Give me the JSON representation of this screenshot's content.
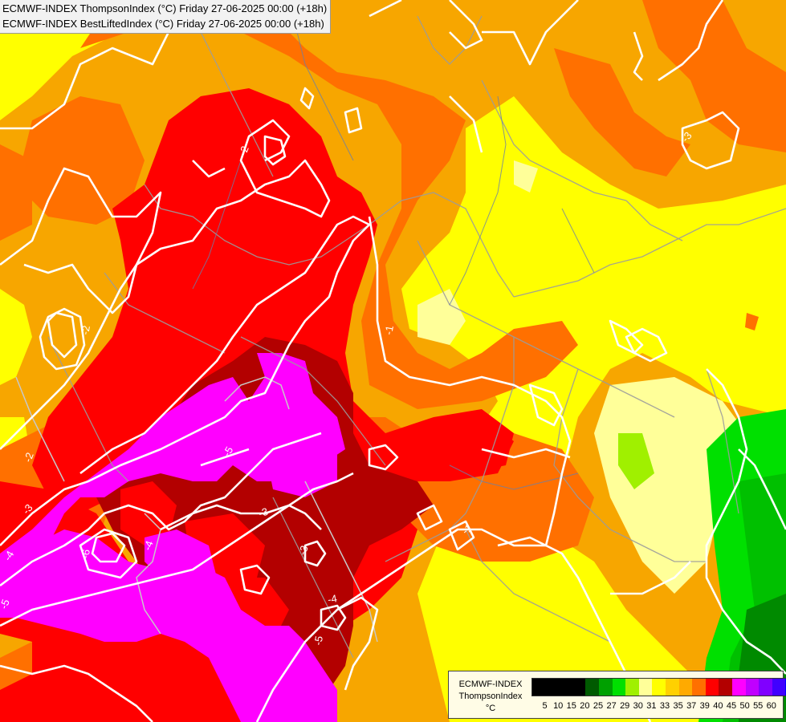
{
  "header": {
    "line1": "ECMWF-INDEX ThompsonIndex (°C) Friday 27-06-2025 00:00 (+18h)",
    "line2": "ECMWF-INDEX BestLiftedIndex (°C) Friday 27-06-2025 00:00 (+18h)"
  },
  "legend": {
    "title_line1": "ECMWF-INDEX",
    "title_line2": "ThompsonIndex",
    "title_line3": "°C",
    "colors": [
      "#000000",
      "#000000",
      "#000000",
      "#000000",
      "#005a00",
      "#00a000",
      "#00e000",
      "#a0f000",
      "#ffff99",
      "#ffff00",
      "#ffd000",
      "#ffaa00",
      "#ff7000",
      "#ff0000",
      "#b30000",
      "#ff00ff",
      "#c000ff",
      "#8000ff",
      "#4000ff",
      "#0000ff"
    ],
    "ticks": [
      "5",
      "10",
      "15",
      "20",
      "25",
      "27",
      "29",
      "30",
      "31",
      "33",
      "35",
      "37",
      "39",
      "40",
      "45",
      "50",
      "55",
      "60"
    ]
  },
  "contour_labels": [
    "-2",
    "-1",
    "-2",
    "-3",
    "-4",
    "-5",
    "-6",
    "-5",
    "-3",
    "-4",
    "-5",
    "-3",
    "-1",
    "-4",
    "-3",
    "-2"
  ]
}
